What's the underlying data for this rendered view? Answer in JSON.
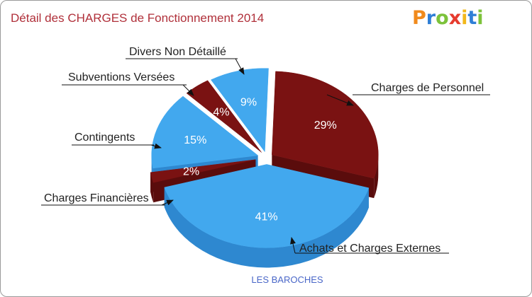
{
  "chart_data": {
    "type": "pie",
    "title": "Détail des CHARGES de Fonctionnement 2014",
    "subtitle": "LES BAROCHES",
    "slices": [
      {
        "key": "personnel",
        "label": "Charges de Personnel",
        "value": 29,
        "percent_label": "29%",
        "color": "#7a1212",
        "side_color": "#5a0c0c"
      },
      {
        "key": "achats",
        "label": "Achats et Charges Externes",
        "value": 41,
        "percent_label": "41%",
        "color": "#42a8ee",
        "side_color": "#2e88d0"
      },
      {
        "key": "financieres",
        "label": "Charges Financières",
        "value": 2,
        "percent_label": "2%",
        "color": "#7a1212",
        "side_color": "#5a0c0c"
      },
      {
        "key": "contingents",
        "label": "Contingents",
        "value": 15,
        "percent_label": "15%",
        "color": "#42a8ee",
        "side_color": "#2e88d0"
      },
      {
        "key": "subventions",
        "label": "Subventions Versées",
        "value": 4,
        "percent_label": "4%",
        "color": "#7a1212",
        "side_color": "#5a0c0c"
      },
      {
        "key": "divers",
        "label": "Divers Non Détaillé",
        "value": 9,
        "percent_label": "9%",
        "color": "#42a8ee",
        "side_color": "#2e88d0"
      }
    ],
    "start_angle_deg": -88,
    "direction": "clockwise",
    "exploded": true
  },
  "logo": {
    "letters": [
      {
        "char": "P",
        "color": "#f08a1c"
      },
      {
        "char": "r",
        "color": "#2f7fd6"
      },
      {
        "char": "o",
        "color": "#7cc23a"
      },
      {
        "char": "x",
        "color": "#e63b2e"
      },
      {
        "char": "i",
        "color": "#f2b81b"
      },
      {
        "char": "t",
        "color": "#2f7fd6"
      },
      {
        "char": "i",
        "color": "#7cc23a"
      }
    ]
  },
  "colors": {
    "title": "#b0303a",
    "subtitle": "#4a67c8",
    "border": "#9a9a9a"
  }
}
